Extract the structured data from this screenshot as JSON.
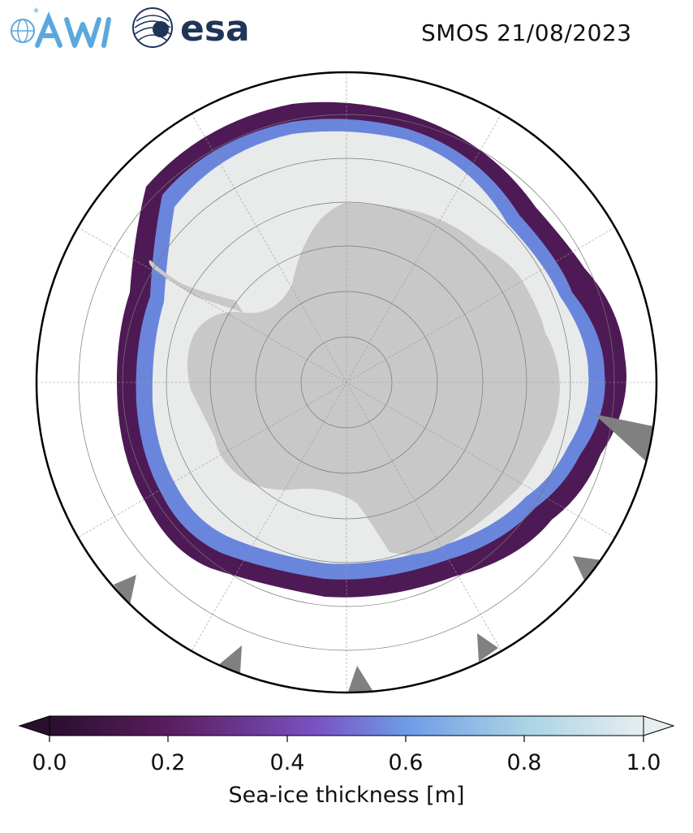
{
  "header": {
    "title": "SMOS 21/08/2023",
    "logos": [
      {
        "name": "awi-logo",
        "text": "AWI",
        "color": "#5ba8dc"
      },
      {
        "name": "esa-logo",
        "text": "esa",
        "color": "#1f3558"
      }
    ]
  },
  "map": {
    "projection": "south-polar-stereographic",
    "variable": "sea-ice thickness",
    "land_color": "#c8c8c8",
    "no_data_color": "#808080",
    "background": "#ffffff",
    "graticule": "dashed grey meridians and parallels",
    "features": [
      "antarctica-landmass",
      "sea-ice-field",
      "ocean"
    ]
  },
  "colorbar": {
    "label": "Sea-ice thickness [m]",
    "min": 0.0,
    "max": 1.0,
    "extend": "both",
    "ticks": [
      "0.0",
      "0.2",
      "0.4",
      "0.6",
      "0.8",
      "1.0"
    ],
    "colormap_stops": [
      "#2a0f2e",
      "#5a1d5e",
      "#7a52c4",
      "#6e9be6",
      "#a9d3e6",
      "#e6eeee"
    ]
  }
}
